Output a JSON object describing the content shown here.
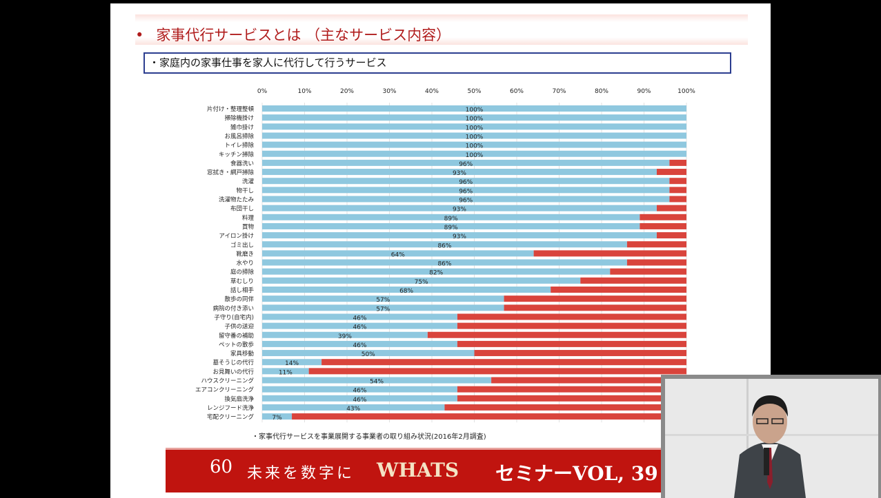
{
  "slide": {
    "bullet": "•",
    "title": "家事代行サービスとは （主なサービス内容）",
    "subtitle": "・家庭内の家事仕事を家人に代行して行うサービス",
    "note": "・家事代行サービスを事業展開する事業者の取り組み状況(2016年2月調査)"
  },
  "banner": {
    "logo": "60th",
    "slogan": "未来を数字に",
    "brand": "WHATS",
    "seminar": "セミナーVOL, 39"
  },
  "colors": {
    "bar": "#8fc8df",
    "remainder": "#d9443c",
    "title": "#b01c1c",
    "banner": "#c0140f"
  },
  "chart_data": {
    "type": "bar",
    "orientation": "horizontal-stacked-100",
    "xlim": [
      0,
      100
    ],
    "x_ticks": [
      "0%",
      "10%",
      "20%",
      "30%",
      "40%",
      "50%",
      "60%",
      "70%",
      "80%",
      "90%",
      "100%"
    ],
    "categories": [
      "片付け・整理整頓",
      "掃除機掛け",
      "雑巾掛け",
      "お風呂掃除",
      "トイレ掃除",
      "キッチン掃除",
      "食器洗い",
      "窓拭き・網戸掃除",
      "洗濯",
      "物干し",
      "洗濯物たたみ",
      "布団干し",
      "料理",
      "買物",
      "アイロン掛け",
      "ゴミ出し",
      "靴磨き",
      "水やり",
      "庭の掃除",
      "草むしり",
      "話し相手",
      "散歩の同伴",
      "病院の付き添い",
      "子守り(自宅内)",
      "子供の送迎",
      "留守番の補助",
      "ペットの散歩",
      "家具移動",
      "墓そうじの代行",
      "お見舞いの代行",
      "ハウスクリーニング",
      "エアコンクリーニング",
      "換気扇洗浄",
      "レンジフード洗浄",
      "宅配クリーニング"
    ],
    "values": [
      100,
      100,
      100,
      100,
      100,
      100,
      96,
      93,
      96,
      96,
      96,
      93,
      89,
      89,
      93,
      86,
      64,
      86,
      82,
      75,
      68,
      57,
      57,
      46,
      46,
      39,
      46,
      50,
      14,
      11,
      54,
      46,
      46,
      43,
      7
    ],
    "labels": [
      "100%",
      "100%",
      "100%",
      "100%",
      "100%",
      "100%",
      "96%",
      "93%",
      "96%",
      "96%",
      "96%",
      "93%",
      "89%",
      "89%",
      "93%",
      "86%",
      "64%",
      "86%",
      "82%",
      "75%",
      "68%",
      "57%",
      "57%",
      "46%",
      "46%",
      "39%",
      "46%",
      "50%",
      "14%",
      "11%",
      "54%",
      "46%",
      "46%",
      "43%",
      "7%"
    ],
    "grid": true
  }
}
